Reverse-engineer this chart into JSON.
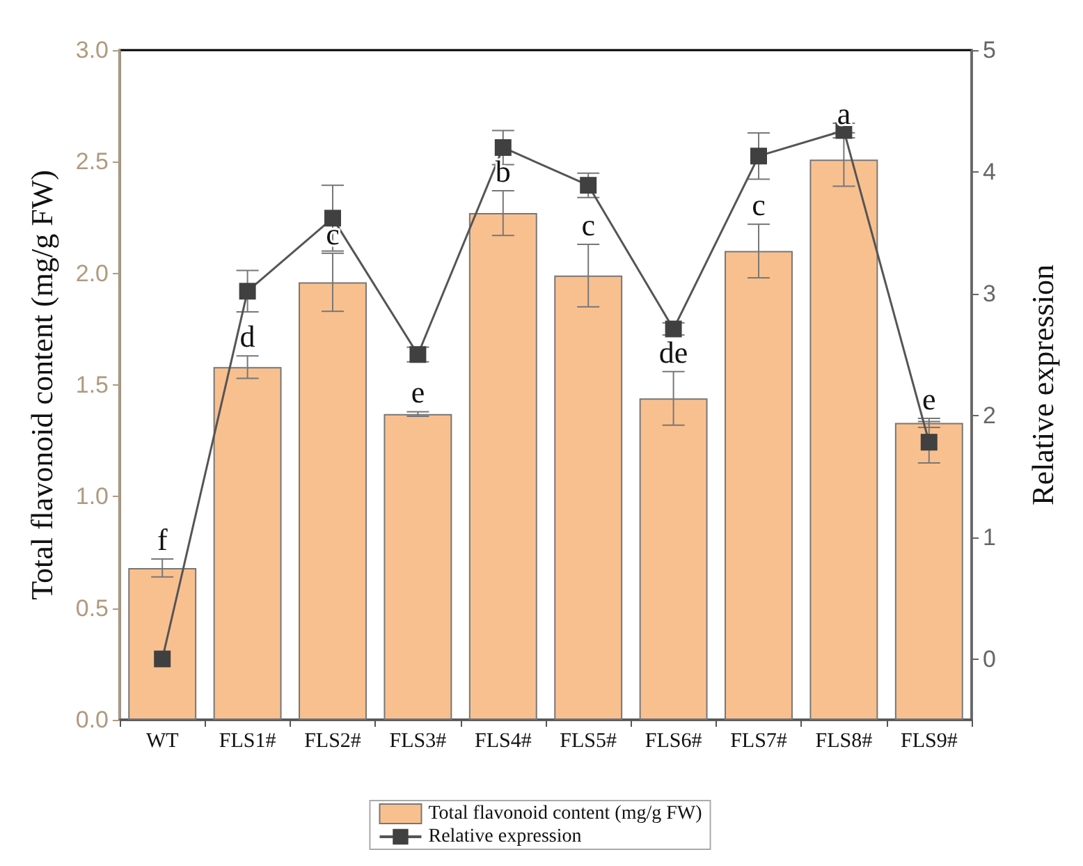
{
  "chart_data": {
    "type": "bar",
    "categories": [
      "WT",
      "FLS1#",
      "FLS2#",
      "FLS3#",
      "FLS4#",
      "FLS5#",
      "FLS6#",
      "FLS7#",
      "FLS8#",
      "FLS9#"
    ],
    "series": [
      {
        "name": "Total flavonoid content (mg/g FW)",
        "color": "#f9c08f",
        "values": [
          0.68,
          1.58,
          1.96,
          1.37,
          2.27,
          1.99,
          1.44,
          2.1,
          2.51,
          1.33
        ],
        "errors": [
          0.04,
          0.05,
          0.13,
          0.01,
          0.1,
          0.14,
          0.12,
          0.12,
          0.12,
          0.02
        ]
      },
      {
        "name": "Relative expression",
        "type": "line",
        "axis": "y2",
        "color": "#555555",
        "marker": "square",
        "values": [
          0.0,
          3.02,
          3.62,
          2.5,
          4.2,
          3.89,
          2.71,
          4.13,
          4.34,
          1.78
        ],
        "errors": [
          null,
          0.17,
          0.27,
          0.06,
          0.14,
          0.1,
          0.05,
          0.19,
          0.06,
          0.17
        ]
      }
    ],
    "ylabel": "Total flavonoid content (mg/g FW)",
    "y2label": "Relative expression",
    "ylim": [
      0,
      3
    ],
    "yticks": [
      {
        "value": 0,
        "label": "0.0"
      },
      {
        "value": 0.5,
        "label": "0.5"
      },
      {
        "value": 1,
        "label": "1.0"
      },
      {
        "value": 1.5,
        "label": "1.5"
      },
      {
        "value": 2,
        "label": "2.0"
      },
      {
        "value": 2.5,
        "label": "2.5"
      },
      {
        "value": 3,
        "label": "3.0"
      }
    ],
    "y2lim": [
      -0.5,
      5
    ],
    "y2ticks": [
      0,
      1,
      2,
      3,
      4,
      5
    ],
    "annotations": [
      "f",
      "d",
      "c",
      "e",
      "b",
      "c",
      "de",
      "c",
      "a",
      "e"
    ],
    "legend": "bottom",
    "grid": false
  }
}
